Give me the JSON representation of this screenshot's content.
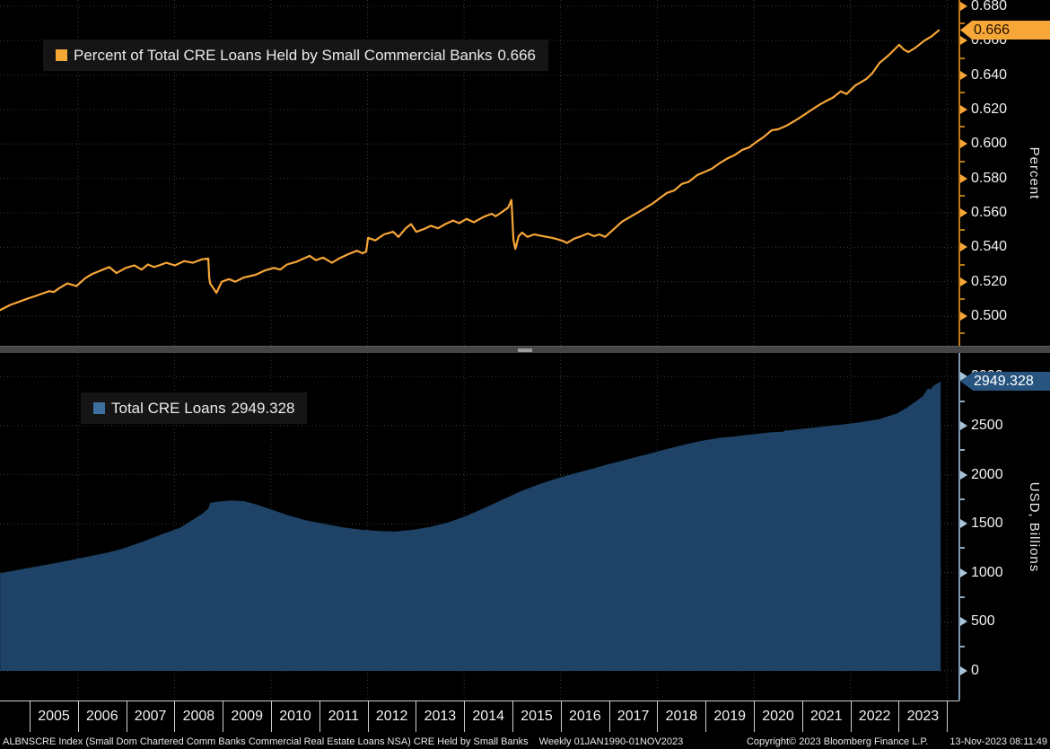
{
  "colors": {
    "background": "#000000",
    "line_orange": "#f7a638",
    "axis_orange": "#b87818",
    "area_blue": "#1e4367",
    "legend_blue": "#3f6f9f",
    "badge_blue_bg": "#275580",
    "axis_blue_gray": "#7d96ad",
    "grid": "#3a3a3a",
    "text": "#f2f2f2"
  },
  "top_panel": {
    "legend_label": "Percent of Total CRE Loans Held by Small Commercial Banks",
    "legend_value": "0.666",
    "badge": "0.666",
    "axis_title": "Percent",
    "y_tick_labels": [
      "0.680",
      "0.660",
      "0.640",
      "0.620",
      "0.600",
      "0.580",
      "0.560",
      "0.540",
      "0.520",
      "0.500"
    ],
    "y_minor_ticks": [
      0.67,
      0.65,
      0.63,
      0.61,
      0.59,
      0.57,
      0.55,
      0.53,
      0.51,
      0.49
    ]
  },
  "bottom_panel": {
    "legend_label": "Total CRE Loans",
    "legend_value": "2949.328",
    "badge": "2949.328",
    "axis_title": "USD, Billions",
    "y_tick_labels": [
      "3000",
      "2500",
      "2000",
      "1500",
      "1000",
      "500",
      "0"
    ],
    "y_minor_ticks": [
      2750,
      2250,
      1750,
      1250,
      750,
      250
    ]
  },
  "x_axis": {
    "years": [
      "2005",
      "2006",
      "2007",
      "2008",
      "2009",
      "2010",
      "2011",
      "2012",
      "2013",
      "2014",
      "2015",
      "2016",
      "2017",
      "2018",
      "2019",
      "2020",
      "2021",
      "2022",
      "2023"
    ],
    "grid_years": [
      2006,
      2008,
      2010,
      2012,
      2014,
      2016,
      2018,
      2020,
      2022,
      2024
    ]
  },
  "footer": {
    "security": "ALBNSCRE Index (Small Dom Chartered Comm Banks Commercial Real Estate Loans NSA) CRE Held by Small Banks",
    "periodicity": "Weekly 01JAN1990-01NOV2023",
    "copyright": "Copyright© 2023 Bloomberg Finance L.P.",
    "timestamp": "13-Nov-2023 08:11:49"
  },
  "chart_data": [
    {
      "type": "line",
      "name": "Percent of Total CRE Loans Held by Small Commercial Banks",
      "last_value": 0.666,
      "ylabel": "Percent",
      "ylim": [
        0.483,
        0.685
      ],
      "y_ticks": [
        0.5,
        0.52,
        0.54,
        0.56,
        0.58,
        0.6,
        0.62,
        0.64,
        0.66,
        0.68
      ],
      "x_range_years": [
        2004.4,
        2023.87
      ],
      "grid": true,
      "legend_position": "top-left",
      "points": [
        [
          2004.39,
          0.5035
        ],
        [
          2004.6,
          0.5065
        ],
        [
          2004.8,
          0.5085
        ],
        [
          2004.94,
          0.51
        ],
        [
          2005.1,
          0.5115
        ],
        [
          2005.25,
          0.513
        ],
        [
          2005.41,
          0.5145
        ],
        [
          2005.5,
          0.514
        ],
        [
          2005.6,
          0.516
        ],
        [
          2005.78,
          0.519
        ],
        [
          2005.97,
          0.5175
        ],
        [
          2006.15,
          0.522
        ],
        [
          2006.3,
          0.5245
        ],
        [
          2006.52,
          0.527
        ],
        [
          2006.65,
          0.5285
        ],
        [
          2006.8,
          0.525
        ],
        [
          2006.99,
          0.528
        ],
        [
          2007.17,
          0.5295
        ],
        [
          2007.32,
          0.527
        ],
        [
          2007.45,
          0.53
        ],
        [
          2007.58,
          0.5285
        ],
        [
          2007.83,
          0.531
        ],
        [
          2008.01,
          0.5295
        ],
        [
          2008.2,
          0.532
        ],
        [
          2008.38,
          0.531
        ],
        [
          2008.57,
          0.533
        ],
        [
          2008.7,
          0.5335
        ],
        [
          2008.72,
          0.5225
        ],
        [
          2008.74,
          0.519
        ],
        [
          2008.87,
          0.5135
        ],
        [
          2008.98,
          0.52
        ],
        [
          2009.13,
          0.5215
        ],
        [
          2009.26,
          0.52
        ],
        [
          2009.44,
          0.5225
        ],
        [
          2009.68,
          0.524
        ],
        [
          2009.87,
          0.5265
        ],
        [
          2010.06,
          0.528
        ],
        [
          2010.19,
          0.527
        ],
        [
          2010.33,
          0.53
        ],
        [
          2010.52,
          0.5315
        ],
        [
          2010.8,
          0.535
        ],
        [
          2010.93,
          0.5325
        ],
        [
          2011.08,
          0.534
        ],
        [
          2011.26,
          0.531
        ],
        [
          2011.41,
          0.5335
        ],
        [
          2011.6,
          0.536
        ],
        [
          2011.78,
          0.538
        ],
        [
          2011.9,
          0.5365
        ],
        [
          2011.97,
          0.5375
        ],
        [
          2012.01,
          0.5455
        ],
        [
          2012.16,
          0.544
        ],
        [
          2012.34,
          0.5475
        ],
        [
          2012.53,
          0.549
        ],
        [
          2012.64,
          0.546
        ],
        [
          2012.79,
          0.551
        ],
        [
          2012.9,
          0.5535
        ],
        [
          2013.01,
          0.549
        ],
        [
          2013.16,
          0.5505
        ],
        [
          2013.31,
          0.5525
        ],
        [
          2013.46,
          0.551
        ],
        [
          2013.61,
          0.5535
        ],
        [
          2013.77,
          0.5555
        ],
        [
          2013.9,
          0.554
        ],
        [
          2014.05,
          0.5565
        ],
        [
          2014.2,
          0.5545
        ],
        [
          2014.39,
          0.5575
        ],
        [
          2014.57,
          0.5595
        ],
        [
          2014.65,
          0.558
        ],
        [
          2014.76,
          0.56
        ],
        [
          2014.91,
          0.563
        ],
        [
          2014.98,
          0.5675
        ],
        [
          2015.02,
          0.5445
        ],
        [
          2015.06,
          0.539
        ],
        [
          2015.13,
          0.5465
        ],
        [
          2015.2,
          0.5485
        ],
        [
          2015.31,
          0.546
        ],
        [
          2015.45,
          0.5475
        ],
        [
          2015.63,
          0.5465
        ],
        [
          2015.82,
          0.5455
        ],
        [
          2015.95,
          0.5445
        ],
        [
          2016.06,
          0.5435
        ],
        [
          2016.13,
          0.5425
        ],
        [
          2016.28,
          0.545
        ],
        [
          2016.43,
          0.5465
        ],
        [
          2016.56,
          0.548
        ],
        [
          2016.69,
          0.5465
        ],
        [
          2016.8,
          0.5475
        ],
        [
          2016.92,
          0.546
        ],
        [
          2017.06,
          0.5495
        ],
        [
          2017.27,
          0.5549
        ],
        [
          2017.59,
          0.5601
        ],
        [
          2017.9,
          0.5653
        ],
        [
          2018.2,
          0.5716
        ],
        [
          2018.35,
          0.573
        ],
        [
          2018.51,
          0.5768
        ],
        [
          2018.65,
          0.578
        ],
        [
          2018.83,
          0.582
        ],
        [
          2019.0,
          0.584
        ],
        [
          2019.13,
          0.5856
        ],
        [
          2019.3,
          0.589
        ],
        [
          2019.44,
          0.5914
        ],
        [
          2019.6,
          0.5935
        ],
        [
          2019.76,
          0.5966
        ],
        [
          2019.9,
          0.598
        ],
        [
          2020.06,
          0.6013
        ],
        [
          2020.2,
          0.604
        ],
        [
          2020.37,
          0.608
        ],
        [
          2020.5,
          0.6085
        ],
        [
          2020.69,
          0.6108
        ],
        [
          2020.85,
          0.6135
        ],
        [
          2020.99,
          0.616
        ],
        [
          2021.15,
          0.619
        ],
        [
          2021.36,
          0.6228
        ],
        [
          2021.5,
          0.625
        ],
        [
          2021.64,
          0.627
        ],
        [
          2021.8,
          0.6306
        ],
        [
          2021.92,
          0.629
        ],
        [
          2022.1,
          0.634
        ],
        [
          2022.33,
          0.6378
        ],
        [
          2022.45,
          0.641
        ],
        [
          2022.6,
          0.647
        ],
        [
          2022.79,
          0.6515
        ],
        [
          2023.01,
          0.6576
        ],
        [
          2023.1,
          0.655
        ],
        [
          2023.2,
          0.6534
        ],
        [
          2023.35,
          0.656
        ],
        [
          2023.53,
          0.66
        ],
        [
          2023.68,
          0.6625
        ],
        [
          2023.83,
          0.666
        ]
      ]
    },
    {
      "type": "area",
      "name": "Total CRE Loans",
      "last_value": 2949.328,
      "ylabel": "USD, Billions",
      "ylim": [
        0,
        3240
      ],
      "y_ticks": [
        0,
        500,
        1000,
        1500,
        2000,
        2500,
        3000
      ],
      "x_range_years": [
        2004.4,
        2023.87
      ],
      "grid": true,
      "legend_position": "top-left",
      "points": [
        [
          2004.39,
          995
        ],
        [
          2004.94,
          1045
        ],
        [
          2005.5,
          1095
        ],
        [
          2006.06,
          1150
        ],
        [
          2006.62,
          1205
        ],
        [
          2006.99,
          1255
        ],
        [
          2007.36,
          1320
        ],
        [
          2007.73,
          1390
        ],
        [
          2008.1,
          1455
        ],
        [
          2008.38,
          1540
        ],
        [
          2008.57,
          1600
        ],
        [
          2008.7,
          1655
        ],
        [
          2008.74,
          1712
        ],
        [
          2008.94,
          1726
        ],
        [
          2009.18,
          1737
        ],
        [
          2009.44,
          1730
        ],
        [
          2009.72,
          1692
        ],
        [
          2010.0,
          1645
        ],
        [
          2010.37,
          1583
        ],
        [
          2010.74,
          1532
        ],
        [
          2011.12,
          1497
        ],
        [
          2011.49,
          1462
        ],
        [
          2011.86,
          1440
        ],
        [
          2012.23,
          1426
        ],
        [
          2012.57,
          1420
        ],
        [
          2012.94,
          1438
        ],
        [
          2013.31,
          1468
        ],
        [
          2013.68,
          1515
        ],
        [
          2014.05,
          1580
        ],
        [
          2014.42,
          1660
        ],
        [
          2014.8,
          1745
        ],
        [
          2015.17,
          1830
        ],
        [
          2015.54,
          1900
        ],
        [
          2015.91,
          1960
        ],
        [
          2016.28,
          2012
        ],
        [
          2016.66,
          2060
        ],
        [
          2017.03,
          2112
        ],
        [
          2017.4,
          2158
        ],
        [
          2017.77,
          2205
        ],
        [
          2018.14,
          2252
        ],
        [
          2018.51,
          2300
        ],
        [
          2018.88,
          2340
        ],
        [
          2019.26,
          2372
        ],
        [
          2019.63,
          2392
        ],
        [
          2020.0,
          2412
        ],
        [
          2020.37,
          2432
        ],
        [
          2020.6,
          2437
        ],
        [
          2020.64,
          2448
        ],
        [
          2020.74,
          2452
        ],
        [
          2021.12,
          2472
        ],
        [
          2021.49,
          2492
        ],
        [
          2021.86,
          2512
        ],
        [
          2022.23,
          2535
        ],
        [
          2022.6,
          2565
        ],
        [
          2022.97,
          2625
        ],
        [
          2023.16,
          2680
        ],
        [
          2023.35,
          2745
        ],
        [
          2023.5,
          2800
        ],
        [
          2023.61,
          2880
        ],
        [
          2023.65,
          2862
        ],
        [
          2023.72,
          2905
        ],
        [
          2023.87,
          2949.328
        ]
      ]
    }
  ]
}
